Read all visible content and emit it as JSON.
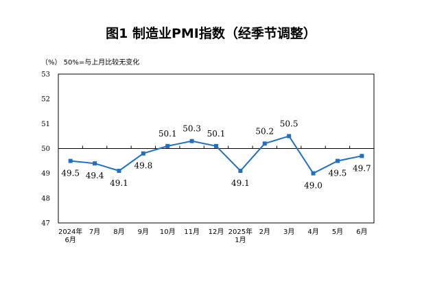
{
  "chart_data": {
    "type": "line",
    "title": "图1  制造业PMI指数（经季节调整）",
    "unit_note": "（%）  50%=与上月比较无变化",
    "categories": [
      [
        "2024年",
        "6月"
      ],
      [
        "7月"
      ],
      [
        "8月"
      ],
      [
        "9月"
      ],
      [
        "10月"
      ],
      [
        "11月"
      ],
      [
        "12月"
      ],
      [
        "2025年",
        "1月"
      ],
      [
        "2月"
      ],
      [
        "3月"
      ],
      [
        "4月"
      ],
      [
        "5月"
      ],
      [
        "6月"
      ]
    ],
    "series": [
      {
        "values": [
          49.5,
          49.4,
          49.1,
          49.8,
          50.1,
          50.3,
          50.1,
          49.1,
          50.2,
          50.5,
          49.0,
          49.5,
          49.7
        ]
      }
    ],
    "data_labels": [
      "49.5",
      "49.4",
      "49.1",
      "49.8",
      "50.1",
      "50.3",
      "50.1",
      "49.1",
      "50.2",
      "50.5",
      "49.0",
      "49.5",
      "49.7"
    ],
    "label_position": [
      "below",
      "below",
      "below",
      "below",
      "above",
      "above",
      "above",
      "below",
      "above",
      "above",
      "below",
      "below",
      "below"
    ],
    "yticks": [
      "53",
      "52",
      "51",
      "50",
      "49",
      "48",
      "47"
    ],
    "ylim": [
      47,
      53
    ],
    "reference_line": 50,
    "line_color": "#1f6fc6",
    "grid": false
  }
}
